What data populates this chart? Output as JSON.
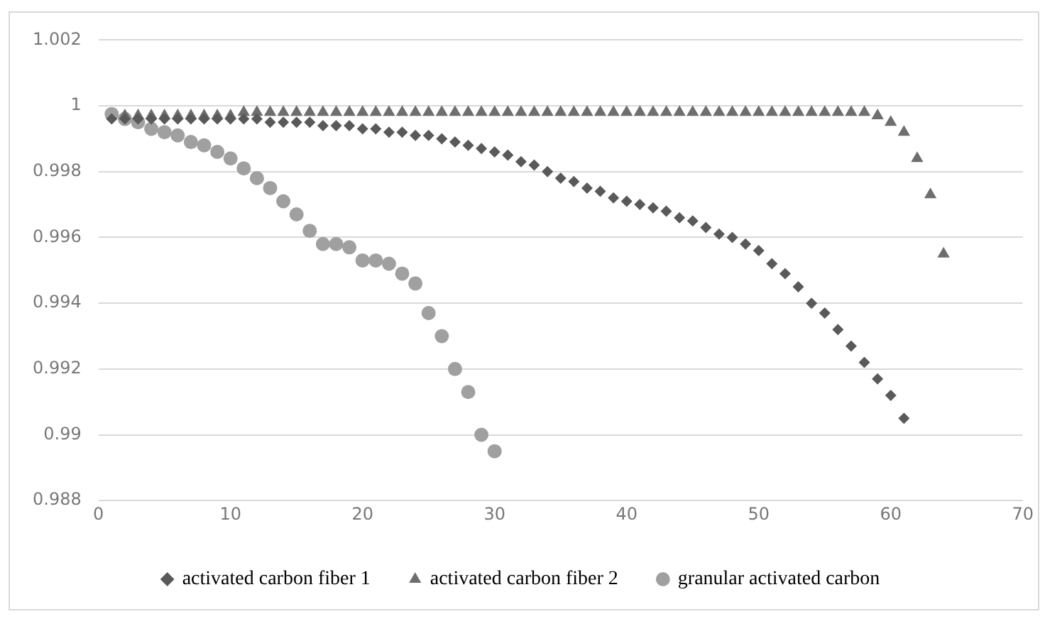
{
  "chart_data": {
    "type": "scatter",
    "xlim": [
      0,
      70
    ],
    "xticks": [
      0,
      10,
      20,
      30,
      40,
      50,
      60,
      70
    ],
    "ylim": [
      0.988,
      1.002
    ],
    "yticks": [
      0.988,
      0.99,
      0.992,
      0.994,
      0.996,
      0.998,
      1,
      1.002
    ],
    "grid": "y",
    "legend": "bottom",
    "series": [
      {
        "name": "activated carbon fiber 1",
        "color": "#595959",
        "marker": "diamond",
        "x": [
          1,
          2,
          3,
          4,
          5,
          6,
          7,
          8,
          9,
          10,
          11,
          12,
          13,
          14,
          15,
          16,
          17,
          18,
          19,
          20,
          21,
          22,
          23,
          24,
          25,
          26,
          27,
          28,
          29,
          30,
          31,
          32,
          33,
          34,
          35,
          36,
          37,
          38,
          39,
          40,
          41,
          42,
          43,
          44,
          45,
          46,
          47,
          48,
          49,
          50,
          51,
          52,
          53,
          54,
          55,
          56,
          57,
          58,
          59,
          60,
          61
        ],
        "values": [
          0.9996,
          0.9996,
          0.9996,
          0.9996,
          0.9996,
          0.9996,
          0.9996,
          0.9996,
          0.9996,
          0.9996,
          0.9996,
          0.9996,
          0.9995,
          0.9995,
          0.9995,
          0.9995,
          0.9994,
          0.9994,
          0.9994,
          0.9993,
          0.9993,
          0.9992,
          0.9992,
          0.9991,
          0.9991,
          0.999,
          0.9989,
          0.9988,
          0.9987,
          0.9986,
          0.9985,
          0.9983,
          0.9982,
          0.998,
          0.9978,
          0.9977,
          0.9975,
          0.9974,
          0.9972,
          0.9971,
          0.997,
          0.9969,
          0.9968,
          0.9966,
          0.9965,
          0.9963,
          0.9961,
          0.996,
          0.9958,
          0.9956,
          0.9952,
          0.9949,
          0.9945,
          0.994,
          0.9937,
          0.9932,
          0.9927,
          0.9922,
          0.9917,
          0.9912,
          0.9905
        ]
      },
      {
        "name": "activated carbon fiber 2",
        "color": "#6e6e6e",
        "marker": "triangle",
        "x": [
          2,
          3,
          4,
          5,
          6,
          7,
          8,
          9,
          10,
          11,
          12,
          13,
          14,
          15,
          16,
          17,
          18,
          19,
          20,
          21,
          22,
          23,
          24,
          25,
          26,
          27,
          28,
          29,
          30,
          31,
          32,
          33,
          34,
          35,
          36,
          37,
          38,
          39,
          40,
          41,
          42,
          43,
          44,
          45,
          46,
          47,
          48,
          49,
          50,
          51,
          52,
          53,
          54,
          55,
          56,
          57,
          58,
          59,
          60,
          61,
          62,
          63,
          64
        ],
        "values": [
          0.9997,
          0.9997,
          0.9997,
          0.9997,
          0.9997,
          0.9997,
          0.9997,
          0.9997,
          0.9997,
          0.9998,
          0.9998,
          0.9998,
          0.9998,
          0.9998,
          0.9998,
          0.9998,
          0.9998,
          0.9998,
          0.9998,
          0.9998,
          0.9998,
          0.9998,
          0.9998,
          0.9998,
          0.9998,
          0.9998,
          0.9998,
          0.9998,
          0.9998,
          0.9998,
          0.9998,
          0.9998,
          0.9998,
          0.9998,
          0.9998,
          0.9998,
          0.9998,
          0.9998,
          0.9998,
          0.9998,
          0.9998,
          0.9998,
          0.9998,
          0.9998,
          0.9998,
          0.9998,
          0.9998,
          0.9998,
          0.9998,
          0.9998,
          0.9998,
          0.9998,
          0.9998,
          0.9998,
          0.9998,
          0.9998,
          0.9998,
          0.9997,
          0.9995,
          0.9992,
          0.9984,
          0.9973,
          0.9955
        ]
      },
      {
        "name": "granular activated carbon",
        "color": "#a0a0a0",
        "marker": "circle",
        "x": [
          1,
          2,
          3,
          4,
          5,
          6,
          7,
          8,
          9,
          10,
          11,
          12,
          13,
          14,
          15,
          16,
          17,
          18,
          19,
          20,
          21,
          22,
          23,
          24,
          25,
          26,
          27,
          28,
          29,
          30
        ],
        "values": [
          0.99975,
          0.9996,
          0.9995,
          0.9993,
          0.9992,
          0.9991,
          0.9989,
          0.9988,
          0.9986,
          0.9984,
          0.9981,
          0.9978,
          0.9975,
          0.9971,
          0.9967,
          0.9962,
          0.9958,
          0.9958,
          0.9957,
          0.9953,
          0.9953,
          0.9952,
          0.9949,
          0.9946,
          0.9937,
          0.993,
          0.992,
          0.9913,
          0.99,
          0.9895
        ]
      }
    ]
  }
}
